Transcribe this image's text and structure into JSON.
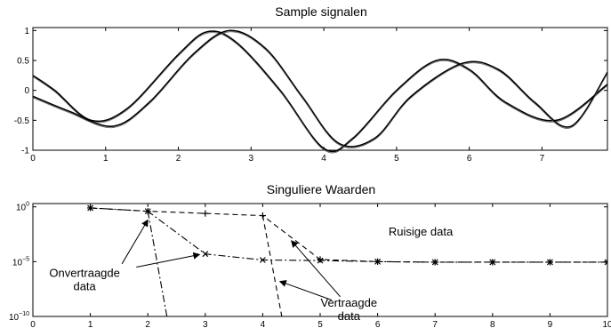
{
  "chart_data": [
    {
      "type": "line",
      "title": "Sample signalen",
      "xlabel": "",
      "ylabel": "",
      "xlim": [
        0,
        7.9
      ],
      "ylim": [
        -1,
        1.05
      ],
      "x_ticks": [
        "0",
        "1",
        "2",
        "3",
        "4",
        "5",
        "6",
        "7"
      ],
      "y_ticks": [
        "1",
        "0.5",
        "0",
        "-0.5",
        "-1"
      ],
      "grid": false,
      "series": [
        {
          "points": [
            [
              0,
              0.25
            ],
            [
              0.3,
              0.0
            ],
            [
              0.8,
              -0.5
            ],
            [
              1.3,
              -0.3
            ],
            [
              2.0,
              0.6
            ],
            [
              2.4,
              0.98
            ],
            [
              2.8,
              0.8
            ],
            [
              3.4,
              0.0
            ],
            [
              4.0,
              -0.97
            ],
            [
              4.4,
              -0.8
            ],
            [
              5.0,
              0.0
            ],
            [
              5.55,
              0.5
            ],
            [
              6.0,
              0.35
            ],
            [
              6.5,
              -0.2
            ],
            [
              7.2,
              -0.5
            ],
            [
              7.9,
              0.1
            ]
          ]
        },
        {
          "points": [
            [
              0,
              -0.1
            ],
            [
              0.5,
              -0.35
            ],
            [
              1.1,
              -0.6
            ],
            [
              1.6,
              -0.2
            ],
            [
              2.2,
              0.6
            ],
            [
              2.7,
              1.0
            ],
            [
              3.2,
              0.7
            ],
            [
              3.7,
              -0.1
            ],
            [
              4.2,
              -0.88
            ],
            [
              4.7,
              -0.8
            ],
            [
              5.2,
              -0.1
            ],
            [
              5.9,
              0.45
            ],
            [
              6.4,
              0.35
            ],
            [
              6.9,
              -0.2
            ],
            [
              7.4,
              -0.6
            ],
            [
              7.9,
              0.3
            ]
          ]
        }
      ]
    },
    {
      "type": "line",
      "title": "Singuliere Waarden",
      "xlabel": "",
      "ylabel": "",
      "xlim": [
        0,
        10
      ],
      "ylim": [
        -10,
        0.3
      ],
      "y_scale": "log",
      "x_ticks": [
        "0",
        "1",
        "2",
        "3",
        "4",
        "5",
        "6",
        "7",
        "8",
        "9",
        "10"
      ],
      "y_ticks": [
        {
          "base": "10",
          "exp": "0",
          "value": 0
        },
        {
          "base": "10",
          "exp": "−5",
          "value": -5
        },
        {
          "base": "10",
          "exp": "−10",
          "value": -10
        }
      ],
      "grid": false,
      "series": [
        {
          "style": "dashed",
          "marker": "plus",
          "points": [
            [
              1,
              -0.1
            ],
            [
              2,
              -0.4
            ],
            [
              3,
              -0.6
            ],
            [
              4,
              -0.8
            ],
            [
              5,
              -4.8
            ],
            [
              6,
              -5.0
            ],
            [
              7,
              -5.05
            ],
            [
              8,
              -5.05
            ],
            [
              9,
              -5.05
            ],
            [
              10,
              -5.05
            ]
          ],
          "tail": [
            [
              4,
              -0.8
            ],
            [
              4.35,
              -10.5
            ]
          ]
        },
        {
          "style": "dashdot",
          "marker": "x",
          "points": [
            [
              1,
              -0.1
            ],
            [
              2,
              -0.4
            ],
            [
              3,
              -4.3
            ],
            [
              4,
              -4.85
            ],
            [
              5,
              -4.9
            ],
            [
              6,
              -5.0
            ],
            [
              7,
              -5.05
            ],
            [
              8,
              -5.05
            ],
            [
              9,
              -5.05
            ],
            [
              10,
              -5.05
            ]
          ],
          "tail": [
            [
              2,
              -0.4
            ],
            [
              2.35,
              -10.5
            ]
          ]
        }
      ],
      "annotations": [
        {
          "lines": [
            "Onvertraagde",
            "data"
          ],
          "x": 0.9,
          "y": -6.4,
          "align": "middle",
          "arrows": [
            [
              1.55,
              -5.2,
              2.0,
              -1.2
            ],
            [
              1.8,
              -5.5,
              2.9,
              -4.35
            ]
          ]
        },
        {
          "lines": [
            "Vertraagde",
            "data"
          ],
          "x": 5.5,
          "y": -9.1,
          "align": "middle",
          "arrows": [
            [
              5.2,
              -8.5,
              4.3,
              -6.8
            ],
            [
              5.35,
              -8.2,
              4.5,
              -3.1
            ]
          ]
        },
        {
          "lines": [
            "Ruisige data"
          ],
          "x": 6.75,
          "y": -2.6,
          "align": "middle",
          "arrows": []
        }
      ]
    }
  ]
}
